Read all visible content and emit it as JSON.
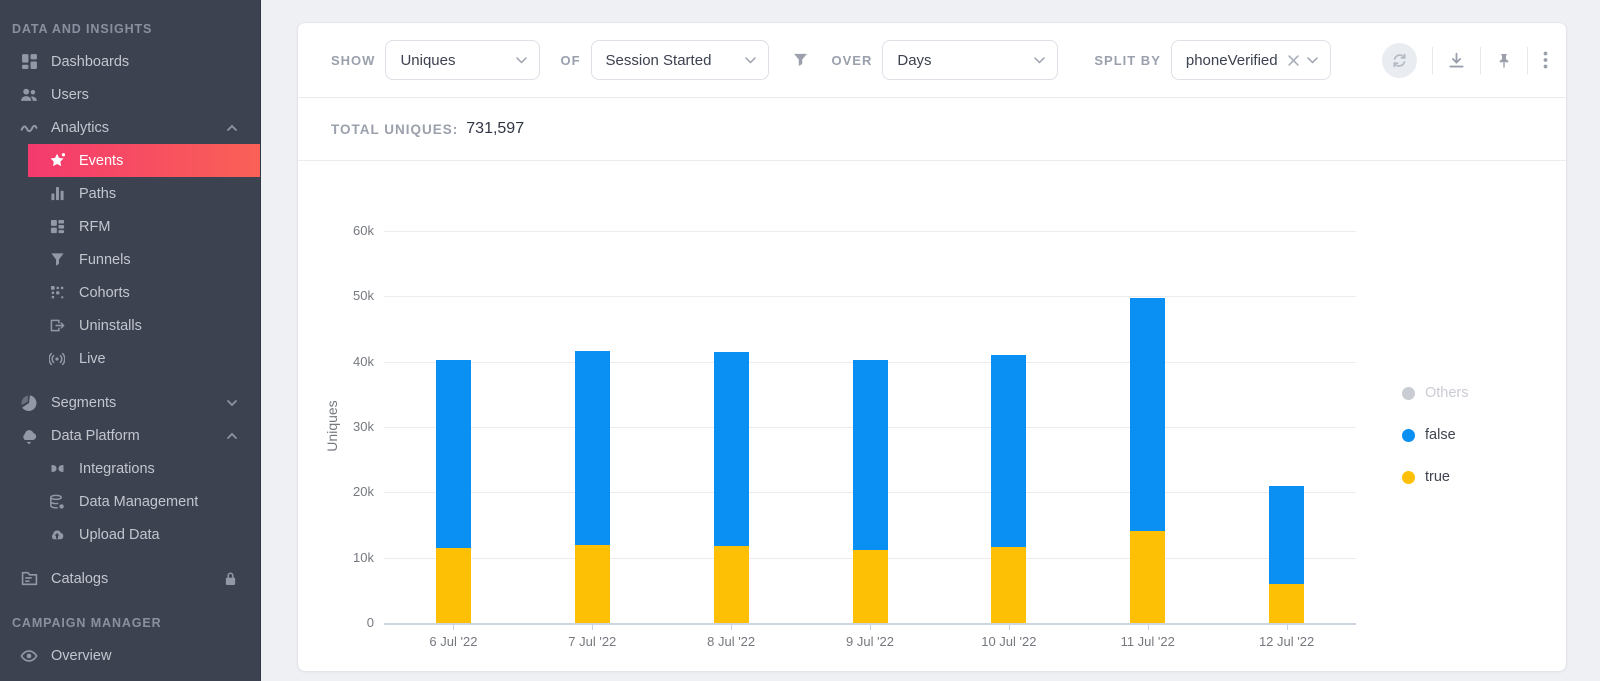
{
  "sidebar": {
    "section1_title": "DATA AND INSIGHTS",
    "section2_title": "CAMPAIGN MANAGER",
    "items": {
      "dashboards": "Dashboards",
      "users": "Users",
      "analytics": "Analytics",
      "events": "Events",
      "paths": "Paths",
      "rfm": "RFM",
      "funnels": "Funnels",
      "cohorts": "Cohorts",
      "uninstalls": "Uninstalls",
      "live": "Live",
      "segments": "Segments",
      "data_platform": "Data Platform",
      "integrations": "Integrations",
      "data_management": "Data Management",
      "upload_data": "Upload Data",
      "catalogs": "Catalogs",
      "overview": "Overview"
    }
  },
  "toolbar": {
    "show_label": "SHOW",
    "show_value": "Uniques",
    "of_label": "OF",
    "of_value": "Session Started",
    "over_label": "OVER",
    "over_value": "Days",
    "split_by_label": "SPLIT BY",
    "split_by_value": "phoneVerified"
  },
  "summary": {
    "label": "TOTAL UNIQUES:",
    "value": "731,597"
  },
  "chart_data": {
    "type": "bar",
    "stacked": true,
    "title": "",
    "xlabel": "",
    "ylabel": "Uniques",
    "categories": [
      "6 Jul '22",
      "7 Jul '22",
      "8 Jul '22",
      "9 Jul '22",
      "10 Jul '22",
      "11 Jul '22",
      "12 Jul '22"
    ],
    "series": [
      {
        "name": "true",
        "color": "#fdc005",
        "values": [
          11500,
          12000,
          11800,
          11100,
          11600,
          14100,
          5900
        ]
      },
      {
        "name": "false",
        "color": "#0a8ff2",
        "values": [
          28700,
          29700,
          29700,
          29200,
          29400,
          35700,
          15000
        ]
      }
    ],
    "totals": [
      40200,
      41700,
      41500,
      40300,
      41000,
      49800,
      20900
    ],
    "legend": [
      {
        "label": "Others",
        "color": "#c9ccd2",
        "disabled": true
      },
      {
        "label": "false",
        "color": "#0a8ff2",
        "disabled": false
      },
      {
        "label": "true",
        "color": "#fdc005",
        "disabled": false
      }
    ],
    "ylim": [
      0,
      60000
    ],
    "ytick_step": 10000,
    "yticks": [
      "0",
      "10k",
      "20k",
      "30k",
      "40k",
      "50k",
      "60k"
    ],
    "grid": true,
    "legend_position": "right"
  }
}
